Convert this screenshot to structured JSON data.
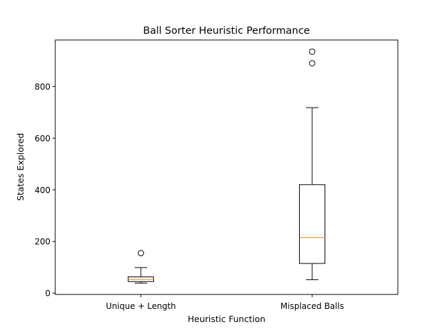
{
  "chart_data": {
    "type": "box",
    "title": "Ball Sorter Heuristic Performance",
    "xlabel": "Heuristic Function",
    "ylabel": "States Explored",
    "ylim": [
      -5,
      980
    ],
    "yticks": [
      0,
      200,
      400,
      600,
      800
    ],
    "grid": false,
    "colors": {
      "box": "#000000",
      "median": "#ff7f0e",
      "background": "#ffffff"
    },
    "categories": [
      "Unique + Length",
      "Misplaced Balls"
    ],
    "boxes": [
      {
        "name": "Unique + Length",
        "whisker_low": 39,
        "q1": 45,
        "median": 53,
        "q3": 63,
        "whisker_high": 99,
        "outliers": [
          155
        ]
      },
      {
        "name": "Misplaced Balls",
        "whisker_low": 52,
        "q1": 115,
        "median": 215,
        "q3": 420,
        "whisker_high": 718,
        "outliers": [
          890,
          935
        ]
      }
    ]
  }
}
